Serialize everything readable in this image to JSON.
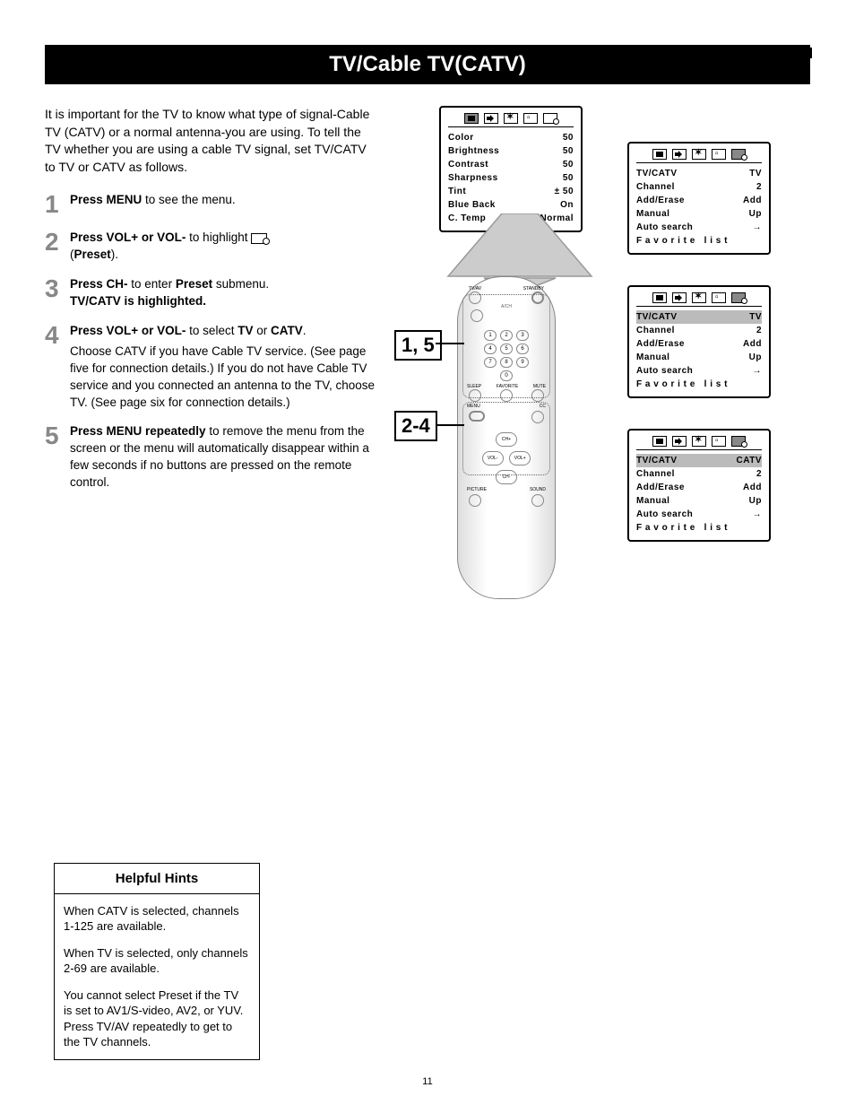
{
  "page": {
    "title": "TV/Cable TV(CATV)",
    "page_number": "11"
  },
  "intro": "It is important for the TV to know what type of signal-Cable TV (CATV) or a normal antenna-you are using. To tell the TV whether you are using a cable TV signal, set TV/CATV to TV or CATV as follows.",
  "steps": {
    "s1": {
      "n": "1",
      "a": "Press MENU",
      "b": " to see the menu."
    },
    "s2": {
      "n": "2",
      "a": "Press VOL+ or VOL-",
      "b": " to highlight ",
      "c": "(",
      "d": "Preset",
      "e": ")."
    },
    "s3": {
      "n": "3",
      "a": "Press CH-",
      "b": " to enter ",
      "c": "Preset",
      "d": " submenu.",
      "e": "TV/CATV is highlighted."
    },
    "s4": {
      "n": "4",
      "a": "Press VOL+ or VOL-",
      "b": " to select ",
      "c": "TV",
      "d": " or ",
      "e": "CATV",
      "f": ".",
      "extra": "Choose CATV if you have Cable TV service. (See page five for connection details.) If you do not have Cable TV service and you connected an antenna to the TV, choose TV. (See page six for connection details.)"
    },
    "s5": {
      "n": "5",
      "a": "Press MENU repeatedly",
      "b": " to remove the menu from the screen or the menu will automatically disappear within a few seconds if no buttons are pressed on the remote control."
    }
  },
  "osd": {
    "picture": [
      {
        "k": "Color",
        "v": "50"
      },
      {
        "k": "Brightness",
        "v": "50"
      },
      {
        "k": "Contrast",
        "v": "50"
      },
      {
        "k": "Sharpness",
        "v": "50"
      },
      {
        "k": "Tint",
        "v": "± 50"
      },
      {
        "k": "Blue Back",
        "v": "On"
      },
      {
        "k": "C. Temp",
        "v": "Normal"
      }
    ],
    "preset_tv": [
      {
        "k": "TV/CATV",
        "v": "TV"
      },
      {
        "k": "Channel",
        "v": "2"
      },
      {
        "k": "Add/Erase",
        "v": "Add"
      },
      {
        "k": "Manual",
        "v": "Up"
      },
      {
        "k": "Auto search",
        "v": "→"
      },
      {
        "k": "Favorite list",
        "v": ""
      }
    ],
    "preset_tv_hl": [
      {
        "k": "TV/CATV",
        "v": "TV",
        "hl": true
      },
      {
        "k": "Channel",
        "v": "2"
      },
      {
        "k": "Add/Erase",
        "v": "Add"
      },
      {
        "k": "Manual",
        "v": "Up"
      },
      {
        "k": "Auto search",
        "v": "→"
      },
      {
        "k": "Favorite list",
        "v": ""
      }
    ],
    "preset_catv_hl": [
      {
        "k": "TV/CATV",
        "v": "CATV",
        "hl": true
      },
      {
        "k": "Channel",
        "v": "2"
      },
      {
        "k": "Add/Erase",
        "v": "Add"
      },
      {
        "k": "Manual",
        "v": "Up"
      },
      {
        "k": "Auto search",
        "v": "→"
      },
      {
        "k": "Favorite list",
        "v": ""
      }
    ],
    "fav": "Favorite list"
  },
  "remote": {
    "callout1": "1, 5",
    "callout2": "2-4",
    "keys": [
      [
        "1",
        "2",
        "3"
      ],
      [
        "4",
        "5",
        "6"
      ],
      [
        "7",
        "8",
        "9"
      ],
      [
        "",
        "0",
        ""
      ]
    ],
    "nav": {
      "chp": "CH+",
      "chm": "CH-",
      "volm": "VOL-",
      "volp": "VOL+"
    }
  },
  "hints": {
    "title": "Helpful Hints",
    "p1": "When CATV is selected, channels 1-125 are available.",
    "p2": "When TV is selected, only channels 2-69 are available.",
    "p3": "You cannot select Preset if the TV is set to AV1/S-video, AV2, or YUV. Press TV/AV repeatedly to get to the TV channels."
  },
  "colors": {
    "step_num": "#888888",
    "osd_border": "#000000",
    "highlight": "#bbbbbb",
    "remote_outline": "#888888"
  }
}
